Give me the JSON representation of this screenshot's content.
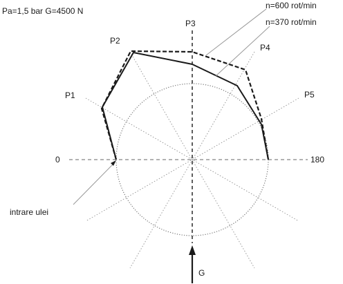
{
  "header": {
    "conditions": "Pa=1,5 bar  G=4500 N"
  },
  "angle_labels": {
    "left": "0",
    "right": "180",
    "p1": "P1",
    "p2": "P2",
    "p3": "P3",
    "p4": "P4",
    "p5": "P5"
  },
  "legend": {
    "n600": "n=600 rot/min",
    "n370": "n=370 rot/min"
  },
  "annotations": {
    "oil_inlet": "intrare ulei",
    "load": "G"
  },
  "colors": {
    "ink": "#1a1a1a",
    "guide": "#999999",
    "circle": "#777777"
  }
}
